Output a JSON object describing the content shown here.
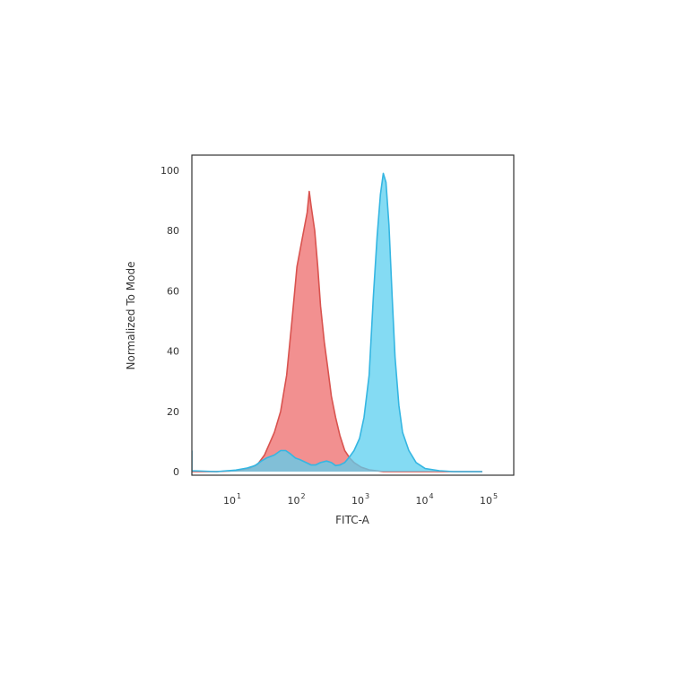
{
  "chart_data": {
    "type": "area",
    "title": "",
    "xlabel": "FITC-A",
    "ylabel": "Normalized To Mode",
    "x_scale": "log",
    "xlim": [
      1.6,
      70000
    ],
    "ylim": [
      0,
      100
    ],
    "y_ticks": [
      "0",
      "20",
      "40",
      "60",
      "80",
      "100"
    ],
    "x_ticks": [
      {
        "value": 10,
        "base": "10",
        "exp": "1"
      },
      {
        "value": 100,
        "base": "10",
        "exp": "2"
      },
      {
        "value": 1000,
        "base": "10",
        "exp": "3"
      },
      {
        "value": 10000,
        "base": "10",
        "exp": "4"
      },
      {
        "value": 100000,
        "base": "10",
        "exp": "5"
      }
    ],
    "series": [
      {
        "color": "#f07c7c",
        "stroke": "#d9534f",
        "points": [
          [
            1.6,
            0
          ],
          [
            5,
            0
          ],
          [
            10,
            0.3
          ],
          [
            16,
            1
          ],
          [
            22,
            2.5
          ],
          [
            28,
            5.5
          ],
          [
            33,
            9
          ],
          [
            40,
            13
          ],
          [
            50,
            20
          ],
          [
            62,
            32
          ],
          [
            75,
            50
          ],
          [
            90,
            68
          ],
          [
            110,
            78
          ],
          [
            130,
            86
          ],
          [
            140,
            93
          ],
          [
            150,
            88
          ],
          [
            170,
            80
          ],
          [
            190,
            68
          ],
          [
            210,
            55
          ],
          [
            240,
            43
          ],
          [
            270,
            35
          ],
          [
            310,
            25
          ],
          [
            360,
            18
          ],
          [
            420,
            12
          ],
          [
            500,
            7
          ],
          [
            600,
            4.5
          ],
          [
            700,
            3
          ],
          [
            900,
            1.5
          ],
          [
            1200,
            0.6
          ],
          [
            2000,
            0
          ],
          [
            70000,
            0
          ]
        ]
      },
      {
        "color": "#5bcfef",
        "stroke": "#35b6e2",
        "points": [
          [
            1.6,
            7
          ],
          [
            1.7,
            2
          ],
          [
            1.9,
            0.3
          ],
          [
            5,
            0
          ],
          [
            10,
            0.5
          ],
          [
            15,
            1.2
          ],
          [
            20,
            2
          ],
          [
            25,
            3.5
          ],
          [
            30,
            4.5
          ],
          [
            40,
            5.5
          ],
          [
            50,
            7
          ],
          [
            60,
            7
          ],
          [
            70,
            6
          ],
          [
            85,
            4.5
          ],
          [
            100,
            4
          ],
          [
            125,
            3
          ],
          [
            150,
            2.2
          ],
          [
            175,
            2.2
          ],
          [
            210,
            3
          ],
          [
            260,
            3.5
          ],
          [
            310,
            3
          ],
          [
            360,
            2
          ],
          [
            420,
            2.2
          ],
          [
            500,
            3
          ],
          [
            600,
            5
          ],
          [
            700,
            7
          ],
          [
            850,
            11
          ],
          [
            1000,
            18
          ],
          [
            1200,
            32
          ],
          [
            1400,
            58
          ],
          [
            1600,
            78
          ],
          [
            1800,
            92
          ],
          [
            2000,
            99
          ],
          [
            2200,
            96
          ],
          [
            2450,
            82
          ],
          [
            2750,
            58
          ],
          [
            3050,
            38
          ],
          [
            3500,
            22
          ],
          [
            4000,
            13
          ],
          [
            5000,
            7
          ],
          [
            6500,
            3
          ],
          [
            9000,
            1
          ],
          [
            15000,
            0.3
          ],
          [
            25000,
            0
          ],
          [
            70000,
            0
          ]
        ]
      }
    ]
  }
}
